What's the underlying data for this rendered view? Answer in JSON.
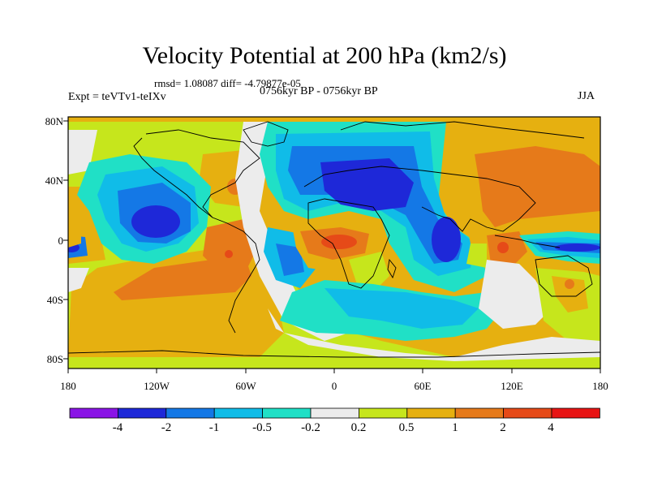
{
  "title": "Velocity Potential at 200 hPa (km2/s)",
  "stats": "rmsd= 1.08087 diff= -4.79877e-05",
  "experiment": "Expt = teVTv1-teIXv",
  "period": "0756kyr BP - 0756kyr BP",
  "season": "JJA",
  "y_ticks": [
    "80N",
    "40N",
    "0",
    "40S",
    "80S"
  ],
  "x_ticks": [
    "180",
    "120W",
    "60W",
    "0",
    "60E",
    "120E",
    "180"
  ],
  "colorbar": {
    "labels": [
      "-4",
      "-2",
      "-1",
      "-0.5",
      "-0.2",
      "0.2",
      "0.5",
      "1",
      "2",
      "4"
    ],
    "colors": [
      "#8a14e6",
      "#1e28d8",
      "#1478e6",
      "#10bce8",
      "#20e0c6",
      "#ececec",
      "#c6e61c",
      "#e6b010",
      "#e67a1a",
      "#e64a18",
      "#e81414"
    ]
  }
}
